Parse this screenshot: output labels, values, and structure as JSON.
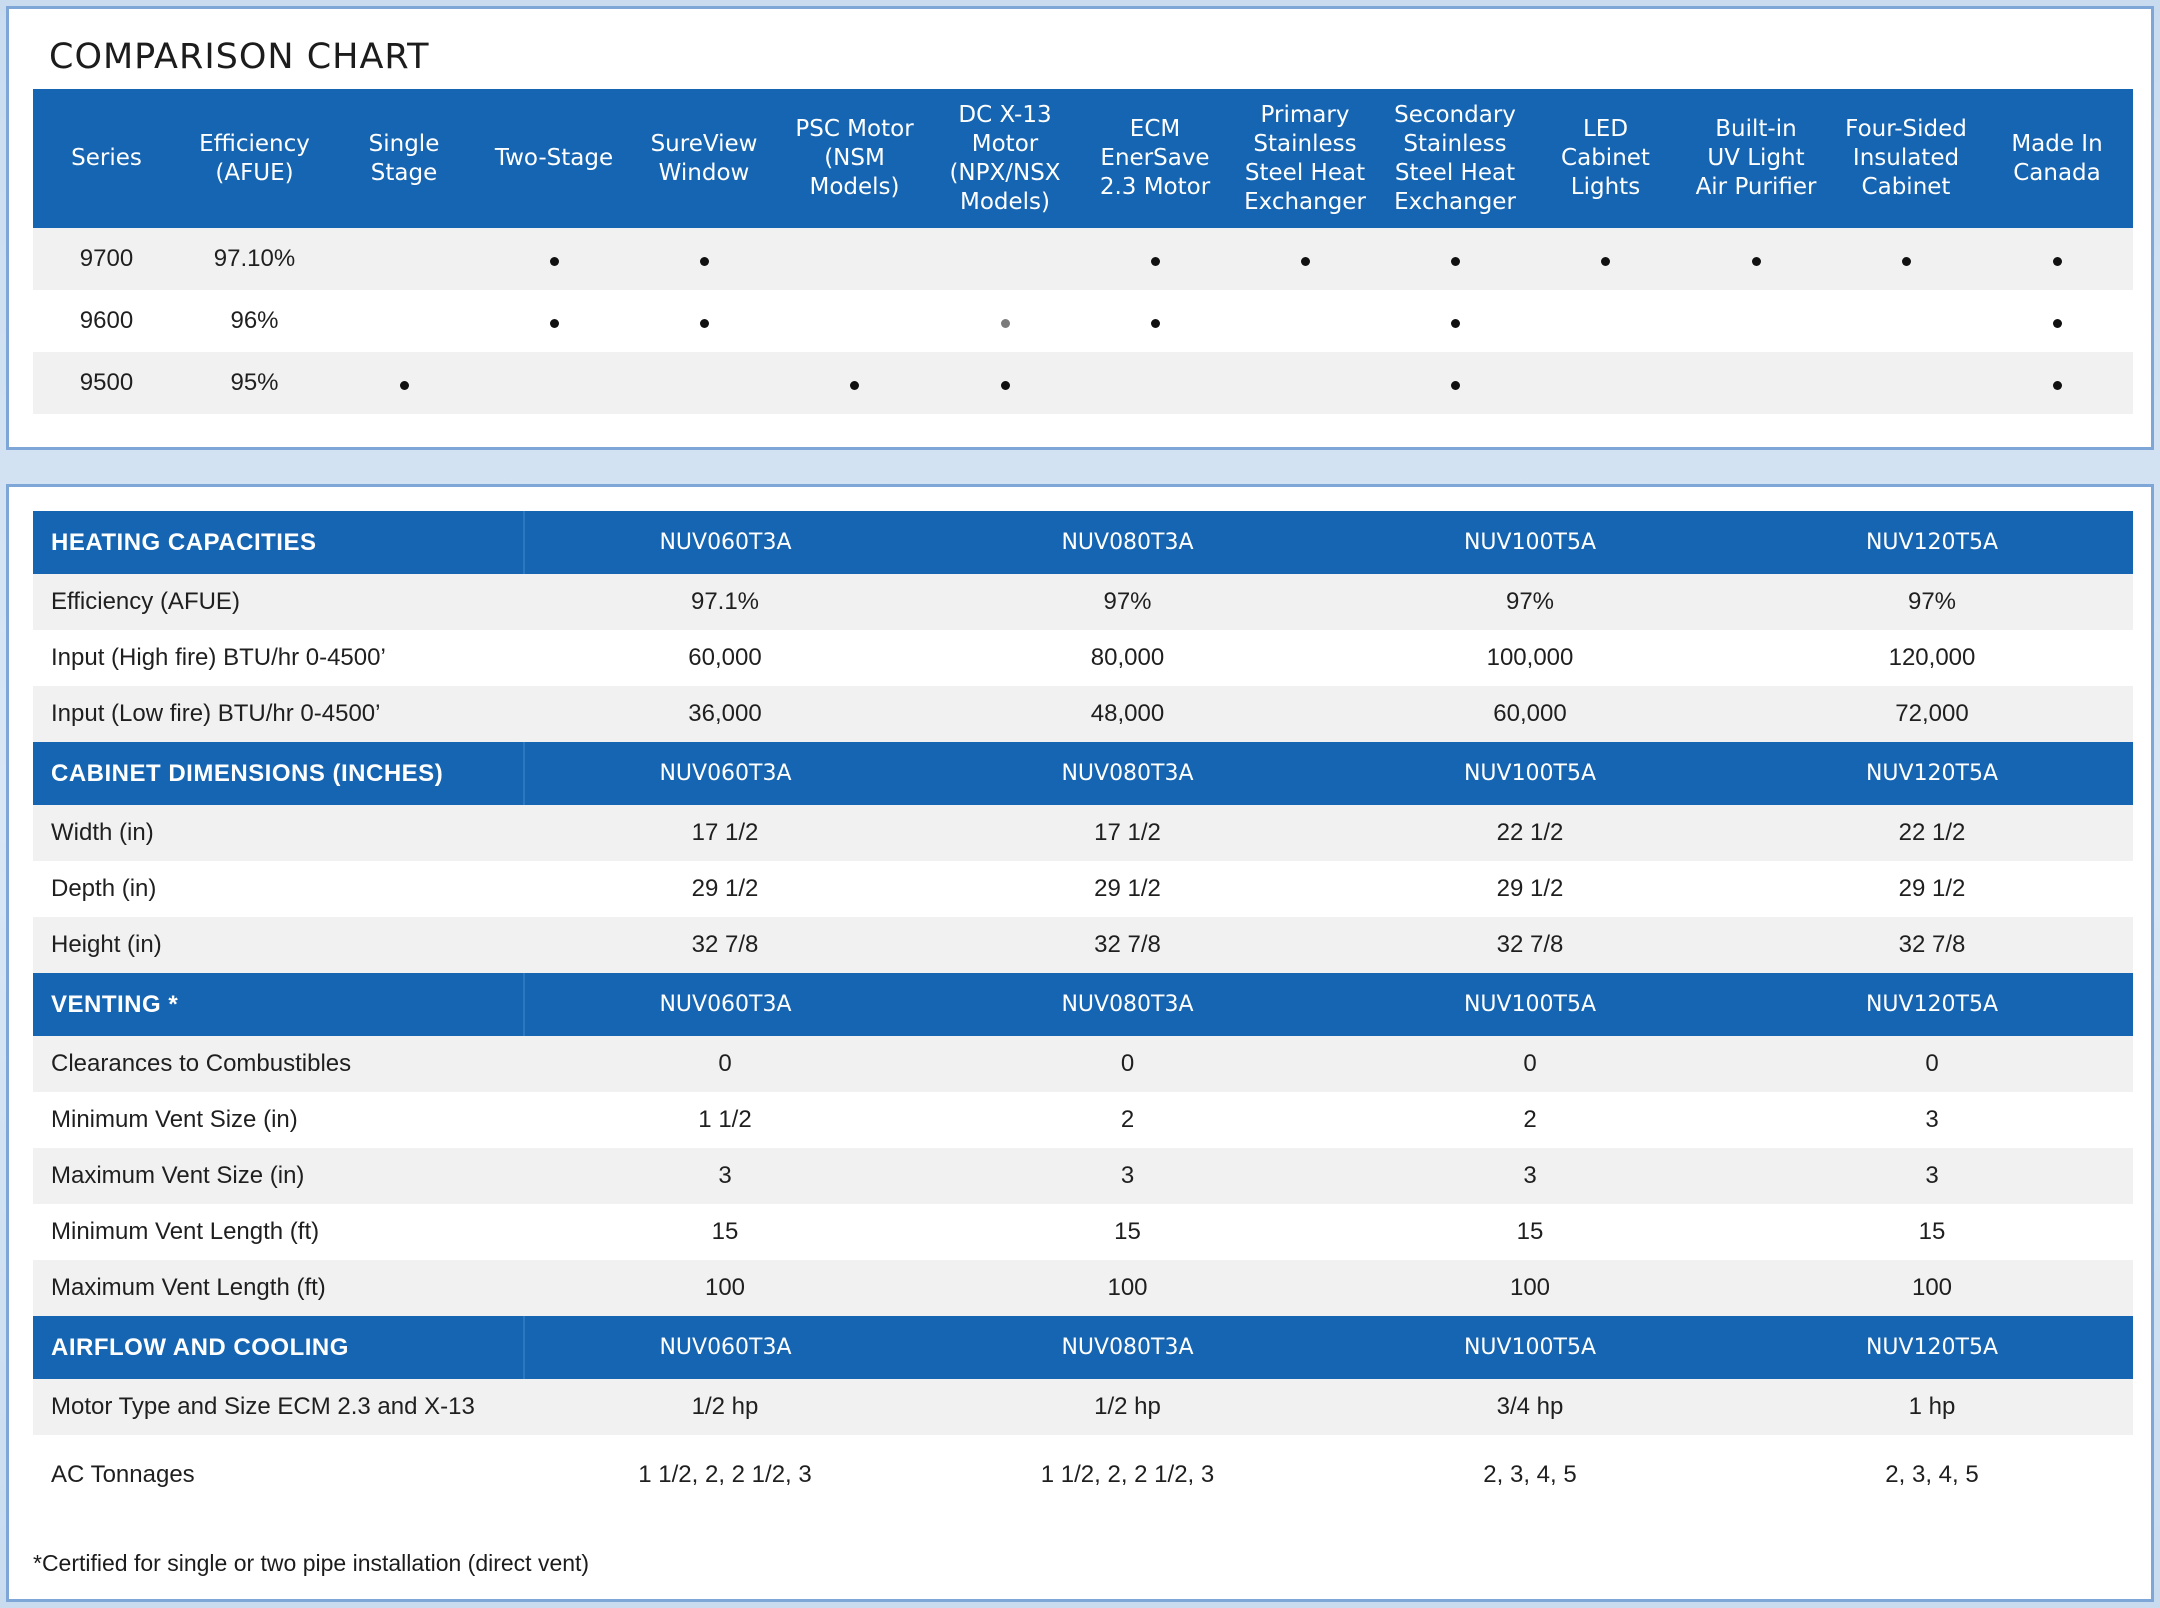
{
  "comparison": {
    "title": "COMPARISON CHART",
    "headers": [
      "Series",
      "Efficiency\n(AFUE)",
      "Single\nStage",
      "Two-Stage",
      "SureView\nWindow",
      "PSC Motor\n(NSM Models)",
      "DC X-13\nMotor\n(NPX/NSX\nModels)",
      "ECM\nEnerSave\n2.3 Motor",
      "Primary\nStainless\nSteel Heat\nExchanger",
      "Secondary\nStainless\nSteel Heat\nExchanger",
      "LED\nCabinet\nLights",
      "Built-in\nUV Light\nAir Purifier",
      "Four-Sided\nInsulated\nCabinet",
      "Made In\nCanada"
    ],
    "rows": [
      {
        "series": "9700",
        "efficiency": "97.10%",
        "features": [
          0,
          1,
          1,
          0,
          0,
          1,
          1,
          1,
          1,
          1,
          1,
          1
        ]
      },
      {
        "series": "9600",
        "efficiency": "96%",
        "features": [
          0,
          1,
          1,
          0,
          2,
          1,
          0,
          1,
          0,
          0,
          0,
          1
        ]
      },
      {
        "series": "9500",
        "efficiency": "95%",
        "features": [
          1,
          0,
          0,
          1,
          1,
          0,
          0,
          1,
          0,
          0,
          0,
          1
        ]
      }
    ]
  },
  "specs": {
    "sections": [
      {
        "title": "HEATING CAPACITIES",
        "models": [
          "NUV060T3A",
          "NUV080T3A",
          "NUV100T5A",
          "NUV120T5A"
        ],
        "rows": [
          {
            "label": "Efficiency (AFUE)",
            "values": [
              "97.1%",
              "97%",
              "97%",
              "97%"
            ]
          },
          {
            "label": "Input (High fire) BTU/hr 0-4500’",
            "values": [
              "60,000",
              "80,000",
              "100,000",
              "120,000"
            ]
          },
          {
            "label": "Input (Low fire) BTU/hr 0-4500’",
            "values": [
              "36,000",
              "48,000",
              "60,000",
              "72,000"
            ]
          }
        ]
      },
      {
        "title": "CABINET DIMENSIONS (INCHES)",
        "models": [
          "NUV060T3A",
          "NUV080T3A",
          "NUV100T5A",
          "NUV120T5A"
        ],
        "rows": [
          {
            "label": "Width (in)",
            "values": [
              "17 1/2",
              "17 1/2",
              "22 1/2",
              "22 1/2"
            ]
          },
          {
            "label": "Depth (in)",
            "values": [
              "29 1/2",
              "29 1/2",
              "29 1/2",
              "29 1/2"
            ]
          },
          {
            "label": "Height (in)",
            "values": [
              "32 7/8",
              "32 7/8",
              "32 7/8",
              "32 7/8"
            ]
          }
        ]
      },
      {
        "title": "VENTING *",
        "models": [
          "NUV060T3A",
          "NUV080T3A",
          "NUV100T5A",
          "NUV120T5A"
        ],
        "rows": [
          {
            "label": "Clearances to Combustibles",
            "values": [
              "0",
              "0",
              "0",
              "0"
            ]
          },
          {
            "label": "Minimum Vent Size (in)",
            "values": [
              "1 1/2",
              "2",
              "2",
              "3"
            ]
          },
          {
            "label": "Maximum Vent Size (in)",
            "values": [
              "3",
              "3",
              "3",
              "3"
            ]
          },
          {
            "label": "Minimum Vent Length (ft)",
            "values": [
              "15",
              "15",
              "15",
              "15"
            ]
          },
          {
            "label": "Maximum Vent Length (ft)",
            "values": [
              "100",
              "100",
              "100",
              "100"
            ]
          }
        ]
      },
      {
        "title": "AIRFLOW AND COOLING",
        "models": [
          "NUV060T3A",
          "NUV080T3A",
          "NUV100T5A",
          "NUV120T5A"
        ],
        "rows": [
          {
            "label": "Motor Type and Size ECM 2.3 and X-13",
            "values": [
              "1/2 hp",
              "1/2 hp",
              "3/4 hp",
              "1 hp"
            ]
          },
          {
            "label": "AC Tonnages",
            "values": [
              "1 1/2, 2, 2 1/2, 3",
              "1 1/2, 2, 2 1/2, 3",
              "2, 3, 4, 5",
              "2, 3, 4, 5"
            ]
          }
        ]
      }
    ],
    "footnote": "*Certified for single or two pipe installation (direct vent)"
  }
}
